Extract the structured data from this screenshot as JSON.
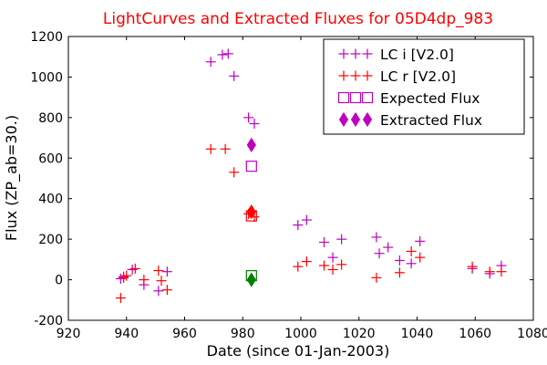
{
  "chart_data": {
    "type": "scatter",
    "title": "LightCurves and Extracted Fluxes for 05D4dp_983",
    "xlabel": "Date (since 01-Jan-2003)",
    "ylabel": "Flux (ZP_ab=30.)",
    "xlim": [
      920,
      1080
    ],
    "ylim": [
      -200,
      1200
    ],
    "xticks": [
      920,
      940,
      960,
      980,
      1000,
      1020,
      1040,
      1060,
      1080
    ],
    "yticks": [
      -200,
      0,
      200,
      400,
      600,
      800,
      1000,
      1200
    ],
    "legend_position": "top-right",
    "series": [
      {
        "name": "LC i [V2.0]",
        "marker": "plus",
        "color": "#bf00bf",
        "points": [
          [
            938,
            5
          ],
          [
            939,
            15
          ],
          [
            942,
            50
          ],
          [
            946,
            -25
          ],
          [
            951,
            -55
          ],
          [
            954,
            40
          ],
          [
            969,
            1075
          ],
          [
            973,
            1110
          ],
          [
            975,
            1115
          ],
          [
            977,
            1005
          ],
          [
            982,
            800
          ],
          [
            984,
            770
          ],
          [
            999,
            270
          ],
          [
            1002,
            295
          ],
          [
            1008,
            185
          ],
          [
            1011,
            110
          ],
          [
            1014,
            200
          ],
          [
            1026,
            210
          ],
          [
            1027,
            130
          ],
          [
            1030,
            160
          ],
          [
            1034,
            95
          ],
          [
            1038,
            80
          ],
          [
            1041,
            190
          ],
          [
            1059,
            55
          ],
          [
            1065,
            30
          ],
          [
            1069,
            70
          ]
        ]
      },
      {
        "name": "LC r [V2.0]",
        "marker": "plus",
        "color": "#ff0000",
        "points": [
          [
            938,
            -90
          ],
          [
            939,
            10
          ],
          [
            940,
            20
          ],
          [
            943,
            55
          ],
          [
            946,
            0
          ],
          [
            951,
            45
          ],
          [
            952,
            -5
          ],
          [
            954,
            -50
          ],
          [
            969,
            645
          ],
          [
            974,
            645
          ],
          [
            977,
            530
          ],
          [
            982,
            325
          ],
          [
            984,
            310
          ],
          [
            999,
            65
          ],
          [
            1002,
            90
          ],
          [
            1008,
            70
          ],
          [
            1011,
            50
          ],
          [
            1014,
            75
          ],
          [
            1026,
            10
          ],
          [
            1034,
            35
          ],
          [
            1038,
            140
          ],
          [
            1041,
            110
          ],
          [
            1059,
            65
          ],
          [
            1065,
            40
          ],
          [
            1069,
            40
          ]
        ]
      },
      {
        "name": "Expected Flux",
        "marker": "square",
        "color": "#bf00bf",
        "points": [
          [
            983,
            560
          ]
        ]
      },
      {
        "name": "Expected Flux (r)",
        "marker": "square",
        "color": "#ff0000",
        "points": [
          [
            983,
            315
          ]
        ]
      },
      {
        "name": "Expected Flux (g)",
        "marker": "square",
        "color": "#008000",
        "points": [
          [
            983,
            20
          ]
        ]
      },
      {
        "name": "Extracted Flux",
        "marker": "diamond",
        "color": "#bf00bf",
        "points": [
          [
            983,
            665
          ]
        ]
      },
      {
        "name": "Extracted Flux (r)",
        "marker": "diamond",
        "color": "#ff0000",
        "points": [
          [
            983,
            335
          ]
        ]
      },
      {
        "name": "Extracted Flux (g)",
        "marker": "diamond",
        "color": "#008000",
        "points": [
          [
            983,
            0
          ]
        ]
      }
    ],
    "legend": [
      {
        "label": "LC i [V2.0]",
        "marker": "plus",
        "color": "#bf00bf"
      },
      {
        "label": "LC r [V2.0]",
        "marker": "plus",
        "color": "#ff0000"
      },
      {
        "label": "Expected Flux",
        "marker": "square",
        "color": "#bf00bf"
      },
      {
        "label": "Extracted Flux",
        "marker": "diamond",
        "color": "#bf00bf"
      }
    ]
  }
}
